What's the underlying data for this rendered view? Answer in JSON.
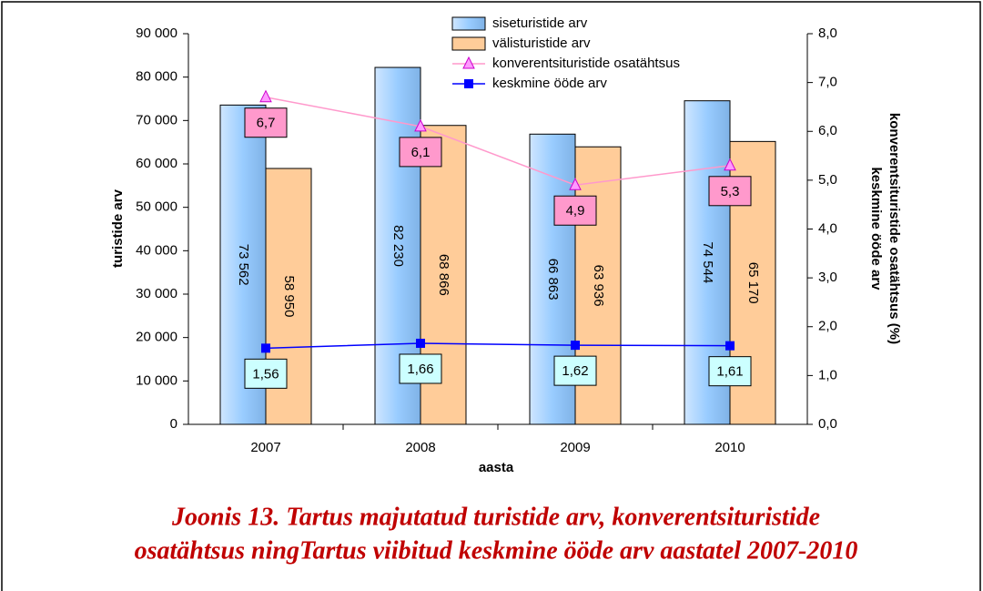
{
  "chart_data": {
    "type": "bar_line",
    "title": [
      "Joonis 13. Tartus majutatud turistide arv, konverentsituristide",
      "osatähtsus ningTartus viibitud keskmine ööde arv aastatel 2007-2010"
    ],
    "x_label": "aasta",
    "y_label": "turistide arv",
    "y2_label": [
      "konverentsituristide osatähtsus (%)",
      "keskmine ööde arv"
    ],
    "categories": [
      "2007",
      "2008",
      "2009",
      "2010"
    ],
    "series": [
      {
        "name": "siseturistide arv",
        "type": "bar",
        "axis": "y",
        "color": "#99ccff",
        "values": [
          73562,
          82230,
          66863,
          74544
        ],
        "value_labels": [
          "73 562",
          "82 230",
          "66 863",
          "74 544"
        ]
      },
      {
        "name": "välisturistide arv",
        "type": "bar",
        "axis": "y",
        "color": "#ffcc99",
        "values": [
          58950,
          68866,
          63936,
          65170
        ],
        "value_labels": [
          "58 950",
          "68 866",
          "63 936",
          "65 170"
        ]
      },
      {
        "name": "konverentsituristide osatähtsus",
        "type": "line",
        "axis": "y2",
        "color": "#ff99cc",
        "marker": "triangle",
        "label_color": "#ff99cc",
        "values": [
          6.7,
          6.1,
          4.9,
          5.3
        ],
        "value_labels": [
          "6,7",
          "6,1",
          "4,9",
          "5,3"
        ]
      },
      {
        "name": "keskmine ööde arv",
        "type": "line",
        "axis": "y2",
        "color": "#0000ff",
        "marker": "square",
        "label_color": "#ccffff",
        "values": [
          1.56,
          1.66,
          1.62,
          1.61
        ],
        "value_labels": [
          "1,56",
          "1,66",
          "1,62",
          "1,61"
        ]
      }
    ],
    "ylim": [
      0,
      90000
    ],
    "yticks": [
      {
        "value": 0,
        "label": "0"
      },
      {
        "value": 10000,
        "label": "10 000"
      },
      {
        "value": 20000,
        "label": "20 000"
      },
      {
        "value": 30000,
        "label": "30 000"
      },
      {
        "value": 40000,
        "label": "40 000"
      },
      {
        "value": 50000,
        "label": "50 000"
      },
      {
        "value": 60000,
        "label": "60 000"
      },
      {
        "value": 70000,
        "label": "70 000"
      },
      {
        "value": 80000,
        "label": "80 000"
      },
      {
        "value": 90000,
        "label": "90 000"
      }
    ],
    "y2lim": [
      0,
      8
    ],
    "y2ticks": [
      {
        "value": 0,
        "label": "0,0"
      },
      {
        "value": 1,
        "label": "1,0"
      },
      {
        "value": 2,
        "label": "2,0"
      },
      {
        "value": 3,
        "label": "3,0"
      },
      {
        "value": 4,
        "label": "4,0"
      },
      {
        "value": 5,
        "label": "5,0"
      },
      {
        "value": 6,
        "label": "6,0"
      },
      {
        "value": 7,
        "label": "7,0"
      },
      {
        "value": 8,
        "label": "8,0"
      }
    ],
    "grid": false
  }
}
